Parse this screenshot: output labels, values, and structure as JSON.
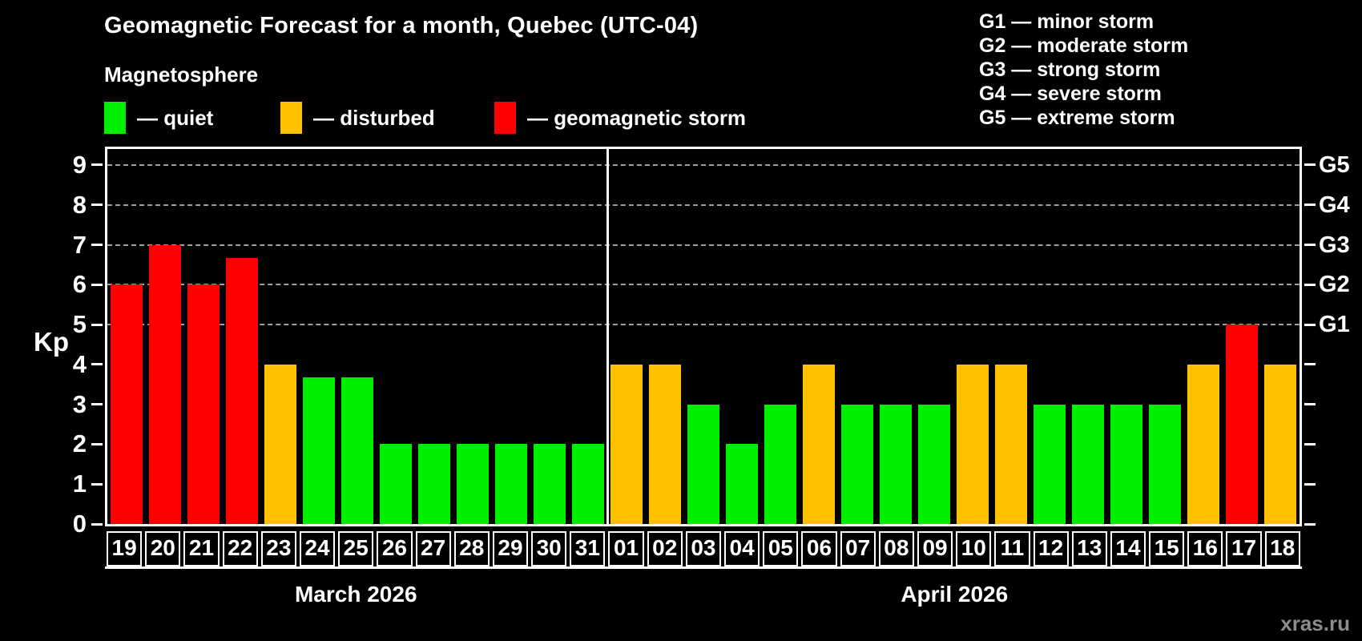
{
  "header": {
    "title": "Geomagnetic Forecast for a month, Quebec (UTC-04)",
    "subtitle": "Magnetosphere"
  },
  "legend": {
    "items": [
      {
        "status": "quiet",
        "label": "— quiet",
        "color": "#00EE00"
      },
      {
        "status": "disturbed",
        "label": "— disturbed",
        "color": "#FFC000"
      },
      {
        "status": "storm",
        "label": "— geomagnetic storm",
        "color": "#FF0000"
      }
    ]
  },
  "g_scale_legend": [
    "G1 — minor storm",
    "G2 — moderate storm",
    "G3 — strong storm",
    "G4 — severe storm",
    "G5 — extreme storm"
  ],
  "watermark": "xras.ru",
  "chart_data": {
    "type": "bar",
    "title": "Geomagnetic Forecast for a month, Quebec (UTC-04)",
    "xlabel": "",
    "ylabel": "Kp",
    "ylim": [
      0,
      9
    ],
    "yticks": [
      0,
      1,
      2,
      3,
      4,
      5,
      6,
      7,
      8,
      9
    ],
    "gridlines_at_kp": [
      5,
      6,
      7,
      8,
      9
    ],
    "grid": "dashed horizontal at storm levels only",
    "legend_position": "top",
    "right_axis": [
      {
        "kp": 5,
        "label": "G1"
      },
      {
        "kp": 6,
        "label": "G2"
      },
      {
        "kp": 7,
        "label": "G3"
      },
      {
        "kp": 8,
        "label": "G4"
      },
      {
        "kp": 9,
        "label": "G5"
      }
    ],
    "status_colors": {
      "quiet": "#00EE00",
      "disturbed": "#FFC000",
      "storm": "#FF0000"
    },
    "groups": [
      {
        "label": "March 2026",
        "days": [
          {
            "date": "19",
            "kp": 6,
            "status": "storm"
          },
          {
            "date": "20",
            "kp": 7,
            "status": "storm"
          },
          {
            "date": "21",
            "kp": 6,
            "status": "storm"
          },
          {
            "date": "22",
            "kp": 6.67,
            "status": "storm"
          },
          {
            "date": "23",
            "kp": 4,
            "status": "disturbed"
          },
          {
            "date": "24",
            "kp": 3.67,
            "status": "quiet"
          },
          {
            "date": "25",
            "kp": 3.67,
            "status": "quiet"
          },
          {
            "date": "26",
            "kp": 2,
            "status": "quiet"
          },
          {
            "date": "27",
            "kp": 2,
            "status": "quiet"
          },
          {
            "date": "28",
            "kp": 2,
            "status": "quiet"
          },
          {
            "date": "29",
            "kp": 2,
            "status": "quiet"
          },
          {
            "date": "30",
            "kp": 2,
            "status": "quiet"
          },
          {
            "date": "31",
            "kp": 2,
            "status": "quiet"
          }
        ]
      },
      {
        "label": "April 2026",
        "days": [
          {
            "date": "01",
            "kp": 4,
            "status": "disturbed"
          },
          {
            "date": "02",
            "kp": 4,
            "status": "disturbed"
          },
          {
            "date": "03",
            "kp": 3,
            "status": "quiet"
          },
          {
            "date": "04",
            "kp": 2,
            "status": "quiet"
          },
          {
            "date": "05",
            "kp": 3,
            "status": "quiet"
          },
          {
            "date": "06",
            "kp": 4,
            "status": "disturbed"
          },
          {
            "date": "07",
            "kp": 3,
            "status": "quiet"
          },
          {
            "date": "08",
            "kp": 3,
            "status": "quiet"
          },
          {
            "date": "09",
            "kp": 3,
            "status": "quiet"
          },
          {
            "date": "10",
            "kp": 4,
            "status": "disturbed"
          },
          {
            "date": "11",
            "kp": 4,
            "status": "disturbed"
          },
          {
            "date": "12",
            "kp": 3,
            "status": "quiet"
          },
          {
            "date": "13",
            "kp": 3,
            "status": "quiet"
          },
          {
            "date": "14",
            "kp": 3,
            "status": "quiet"
          },
          {
            "date": "15",
            "kp": 3,
            "status": "quiet"
          },
          {
            "date": "16",
            "kp": 4,
            "status": "disturbed"
          },
          {
            "date": "17",
            "kp": 5,
            "status": "storm"
          },
          {
            "date": "18",
            "kp": 4,
            "status": "disturbed"
          }
        ]
      }
    ]
  }
}
